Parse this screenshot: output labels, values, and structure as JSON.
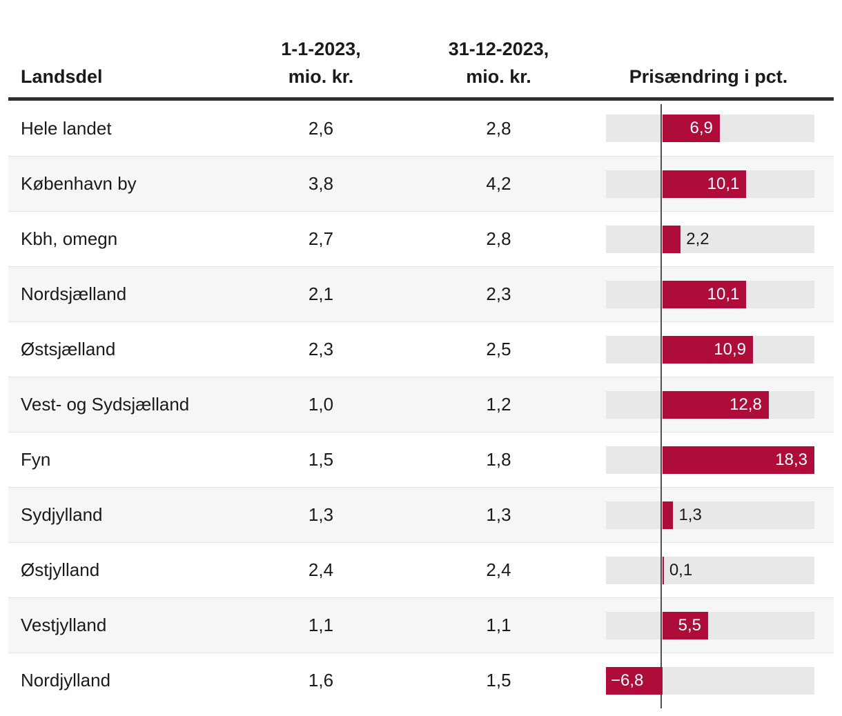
{
  "accent_color": "#ae0d3a",
  "track_color": "#e8e8e8",
  "stripe_color": "#f6f6f6",
  "table": {
    "columns": {
      "landsdel": "Landsdel",
      "start": "1-1-2023,\nmio. kr.",
      "end": "31-12-2023,\nmio. kr.",
      "change": "Prisændring i pct."
    },
    "rows": [
      {
        "landsdel": "Hele landet",
        "start": "2,6",
        "end": "2,8",
        "pct": 6.9,
        "pct_label": "6,9"
      },
      {
        "landsdel": "København by",
        "start": "3,8",
        "end": "4,2",
        "pct": 10.1,
        "pct_label": "10,1"
      },
      {
        "landsdel": "Kbh, omegn",
        "start": "2,7",
        "end": "2,8",
        "pct": 2.2,
        "pct_label": "2,2"
      },
      {
        "landsdel": "Nordsjælland",
        "start": "2,1",
        "end": "2,3",
        "pct": 10.1,
        "pct_label": "10,1"
      },
      {
        "landsdel": "Østsjælland",
        "start": "2,3",
        "end": "2,5",
        "pct": 10.9,
        "pct_label": "10,9"
      },
      {
        "landsdel": "Vest- og Sydsjælland",
        "start": "1,0",
        "end": "1,2",
        "pct": 12.8,
        "pct_label": "12,8"
      },
      {
        "landsdel": "Fyn",
        "start": "1,5",
        "end": "1,8",
        "pct": 18.3,
        "pct_label": "18,3"
      },
      {
        "landsdel": "Sydjylland",
        "start": "1,3",
        "end": "1,3",
        "pct": 1.3,
        "pct_label": "1,3"
      },
      {
        "landsdel": "Østjylland",
        "start": "2,4",
        "end": "2,4",
        "pct": 0.1,
        "pct_label": "0,1"
      },
      {
        "landsdel": "Vestjylland",
        "start": "1,1",
        "end": "1,1",
        "pct": 5.5,
        "pct_label": "5,5"
      },
      {
        "landsdel": "Nordjylland",
        "start": "1,6",
        "end": "1,5",
        "pct": -6.8,
        "pct_label": "−6,8"
      }
    ]
  },
  "chart_data": {
    "type": "bar",
    "orientation": "horizontal",
    "title": "Prisændring i pct.",
    "categories": [
      "Hele landet",
      "København by",
      "Kbh, omegn",
      "Nordsjælland",
      "Østsjælland",
      "Vest- og Sydsjælland",
      "Fyn",
      "Sydjylland",
      "Østjylland",
      "Vestjylland",
      "Nordjylland"
    ],
    "series": [
      {
        "name": "Prisændring i pct.",
        "values": [
          6.9,
          10.1,
          2.2,
          10.1,
          10.9,
          12.8,
          18.3,
          1.3,
          0.1,
          5.5,
          -6.8
        ]
      },
      {
        "name": "1-1-2023, mio. kr.",
        "values": [
          2.6,
          3.8,
          2.7,
          2.1,
          2.3,
          1.0,
          1.5,
          1.3,
          2.4,
          1.1,
          1.6
        ]
      },
      {
        "name": "31-12-2023, mio. kr.",
        "values": [
          2.8,
          4.2,
          2.8,
          2.3,
          2.5,
          1.2,
          1.8,
          1.3,
          2.4,
          1.1,
          1.5
        ]
      }
    ],
    "xlim": [
      -6.8,
      18.3
    ],
    "grid": false,
    "legend_position": "none",
    "zero_line": true,
    "bar_color": "#ae0d3a"
  }
}
